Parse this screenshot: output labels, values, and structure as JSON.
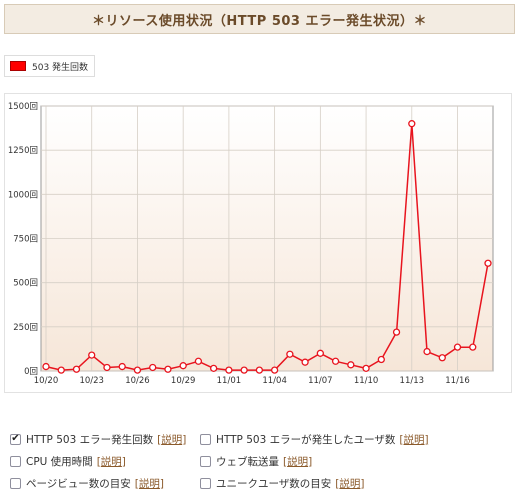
{
  "header": {
    "title": "＊リソース使用状況（HTTP 503 エラー発生状況）＊"
  },
  "legend": {
    "series_name": "503 発生回数",
    "color": "#ff0000"
  },
  "chart_data": {
    "type": "line",
    "title": "",
    "xlabel": "",
    "ylabel": "",
    "ylim": [
      0,
      1500
    ],
    "y_ticks": [
      "0回",
      "250回",
      "500回",
      "750回",
      "1000回",
      "1250回",
      "1500回"
    ],
    "y_tick_values": [
      0,
      250,
      500,
      750,
      1000,
      1250,
      1500
    ],
    "x_tick_labels": [
      "10/20",
      "10/23",
      "10/26",
      "10/29",
      "11/01",
      "11/04",
      "11/07",
      "11/10",
      "11/13",
      "11/16"
    ],
    "x_tick_indices": [
      0,
      3,
      6,
      9,
      12,
      15,
      18,
      21,
      24,
      27
    ],
    "grid": true,
    "series": [
      {
        "name": "503 発生回数",
        "color": "#e8141e",
        "values": [
          25,
          5,
          10,
          90,
          20,
          25,
          5,
          20,
          10,
          30,
          55,
          15,
          5,
          5,
          5,
          5,
          95,
          50,
          100,
          55,
          35,
          15,
          65,
          220,
          1400,
          110,
          75,
          135,
          135,
          610
        ]
      }
    ]
  },
  "options": [
    {
      "key": "http503",
      "label": "HTTP 503 エラー発生回数",
      "checked": true,
      "help": "説明"
    },
    {
      "key": "http503users",
      "label": "HTTP 503 エラーが発生したユーザ数",
      "checked": false,
      "help": "説明"
    },
    {
      "key": "cpu",
      "label": "CPU 使用時間",
      "checked": false,
      "help": "説明"
    },
    {
      "key": "transfer",
      "label": "ウェブ転送量",
      "checked": false,
      "help": "説明"
    },
    {
      "key": "pageviews",
      "label": "ページビュー数の目安",
      "checked": false,
      "help": "説明"
    },
    {
      "key": "uniqueusers",
      "label": "ユニークユーザ数の目安",
      "checked": false,
      "help": "説明"
    }
  ]
}
